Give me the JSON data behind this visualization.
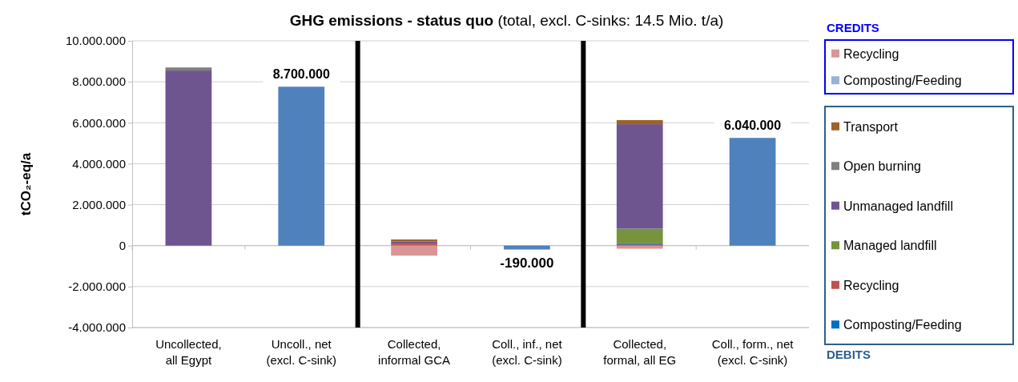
{
  "chart_data": {
    "type": "bar",
    "stacked": true,
    "title": "GHG emissions - status quo (total, excl. C-sinks: 14.5 Mio. t/a)",
    "ylabel": "tCO₂-eq/a",
    "categories": [
      "Uncollected,\nall Egypt",
      "Uncoll., net\n(excl. C-sink)",
      "Collected,\ninformal GCA",
      "Coll., inf., net\n(excl. C-sink)",
      "Collected,\nformal, all EG",
      "Coll., form., net\n(excl. C-sink)"
    ],
    "series": [
      {
        "name": "Composting/Feeding",
        "color": "#0070c0",
        "values": [
          0,
          null,
          0,
          null,
          60000,
          null
        ]
      },
      {
        "name": "Recycling",
        "color": "#c0504d",
        "values": [
          0,
          null,
          100000,
          null,
          50000,
          null
        ]
      },
      {
        "name": "Managed landfill",
        "color": "#77933c",
        "values": [
          0,
          null,
          0,
          null,
          720000,
          null
        ]
      },
      {
        "name": "Unmanaged landfill",
        "color": "#6f5590",
        "values": [
          8550000,
          null,
          100000,
          null,
          5100000,
          null
        ]
      },
      {
        "name": "Open burning",
        "color": "#7f7f7f",
        "values": [
          150000,
          null,
          0,
          null,
          0,
          null
        ]
      },
      {
        "name": "Transport",
        "color": "#9c6228",
        "values": [
          0,
          null,
          100000,
          null,
          200000,
          null
        ]
      },
      {
        "name": "Recycling",
        "color": "#d99694",
        "values": [
          0,
          null,
          -490000,
          null,
          -150000,
          null
        ]
      },
      {
        "name": "Composting/Feeding",
        "color": "#95b3d7",
        "values": [
          0,
          null,
          0,
          null,
          0,
          null
        ]
      },
      {
        "color": "#4f81bd",
        "values": [
          null,
          7760000,
          null,
          -190000,
          null,
          5260000
        ],
        "value_labels": [
          null,
          null,
          null,
          "-190.000",
          null,
          null
        ]
      }
    ],
    "ylim": [
      -4000000,
      10000000
    ],
    "yticks": [
      {
        "value": -4000000,
        "label": "-4.000.000"
      },
      {
        "value": -2000000,
        "label": "-2.000.000"
      },
      {
        "value": 0,
        "label": "0"
      },
      {
        "value": 2000000,
        "label": "2.000.000"
      },
      {
        "value": 4000000,
        "label": "4.000.000"
      },
      {
        "value": 6000000,
        "label": "6.000.000"
      },
      {
        "value": 8000000,
        "label": "8.000.000"
      },
      {
        "value": 10000000,
        "label": "10.000.000"
      }
    ],
    "grid": "y",
    "legend": "right",
    "annotations": [
      "CREDITS",
      "DEBITS",
      "8.700.000",
      "6.040.000"
    ]
  }
}
